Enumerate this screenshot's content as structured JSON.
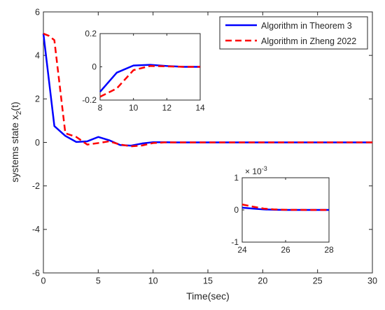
{
  "chart_data": {
    "type": "line",
    "xlabel": "Time(sec)",
    "ylabel": "systems state x",
    "ylabel_sub": "2",
    "ylabel_suffix": "(t)",
    "xlim": [
      0,
      30
    ],
    "ylim": [
      -6,
      6
    ],
    "xticks": [
      0,
      5,
      10,
      15,
      20,
      25,
      30
    ],
    "yticks": [
      -6,
      -4,
      -2,
      0,
      2,
      4,
      6
    ],
    "grid": false,
    "legend_position": "top-right",
    "series": [
      {
        "name": "Algorithm in Theorem 3",
        "color": "#0000ff",
        "dash": "solid",
        "x": [
          0,
          1,
          2,
          3,
          4,
          5,
          6,
          7,
          8,
          9,
          10,
          11,
          12,
          13,
          14,
          16,
          20,
          25,
          30
        ],
        "y": [
          5.0,
          0.75,
          0.3,
          0.02,
          0.05,
          0.25,
          0.1,
          -0.12,
          -0.15,
          -0.05,
          0.01,
          0.01,
          0.0,
          0.0,
          0.0,
          0.0,
          0.0,
          0.0,
          0.0
        ]
      },
      {
        "name": "Algorithm in Zheng 2022",
        "color": "#ff0000",
        "dash": "dashed",
        "x": [
          0,
          0.5,
          1,
          2,
          3,
          4,
          5,
          6,
          7,
          8,
          9,
          10,
          11,
          12,
          13,
          14,
          16,
          20,
          25,
          30
        ],
        "y": [
          5.0,
          4.9,
          4.7,
          0.42,
          0.25,
          -0.1,
          -0.03,
          0.05,
          -0.1,
          -0.18,
          -0.14,
          -0.03,
          0.0,
          0.0,
          0.0,
          0.0,
          0.0,
          0.0,
          0.0,
          0.0
        ]
      }
    ],
    "insets": [
      {
        "xlim": [
          8,
          14
        ],
        "ylim": [
          -0.2,
          0.2
        ],
        "xticks": [
          8,
          10,
          12,
          14
        ],
        "yticks": [
          -0.2,
          0,
          0.2
        ],
        "ytick_labels": [
          "-0.2",
          "0",
          "0.2"
        ],
        "series": [
          {
            "color": "#0000ff",
            "dash": "solid",
            "x": [
              8,
              9,
              10,
              11,
              12,
              13,
              14
            ],
            "y": [
              -0.15,
              -0.035,
              0.008,
              0.012,
              0.005,
              0.0,
              0.0
            ]
          },
          {
            "color": "#ff0000",
            "dash": "dashed",
            "x": [
              8,
              9,
              10,
              11,
              12,
              13,
              14
            ],
            "y": [
              -0.18,
              -0.13,
              -0.02,
              0.005,
              0.003,
              0.0,
              0.0
            ]
          }
        ]
      },
      {
        "xlim": [
          24,
          28
        ],
        "ylim": [
          -1,
          1
        ],
        "xticks": [
          24,
          26,
          28
        ],
        "yticks": [
          -1,
          0,
          1
        ],
        "ytick_labels": [
          "-1",
          "0",
          "1"
        ],
        "multiplier_base": "× 10",
        "multiplier_exp": "-3",
        "series": [
          {
            "color": "#0000ff",
            "dash": "solid",
            "x": [
              24,
              24.5,
              25,
              25.5,
              26,
              27,
              28
            ],
            "y": [
              0.07,
              0.04,
              0.015,
              0.005,
              0.0,
              0.0,
              0.0
            ]
          },
          {
            "color": "#ff0000",
            "dash": "dashed",
            "x": [
              24,
              24.5,
              25,
              25.5,
              26,
              27,
              28
            ],
            "y": [
              0.17,
              0.1,
              0.04,
              0.015,
              0.005,
              0.0,
              0.0
            ]
          }
        ]
      }
    ]
  }
}
